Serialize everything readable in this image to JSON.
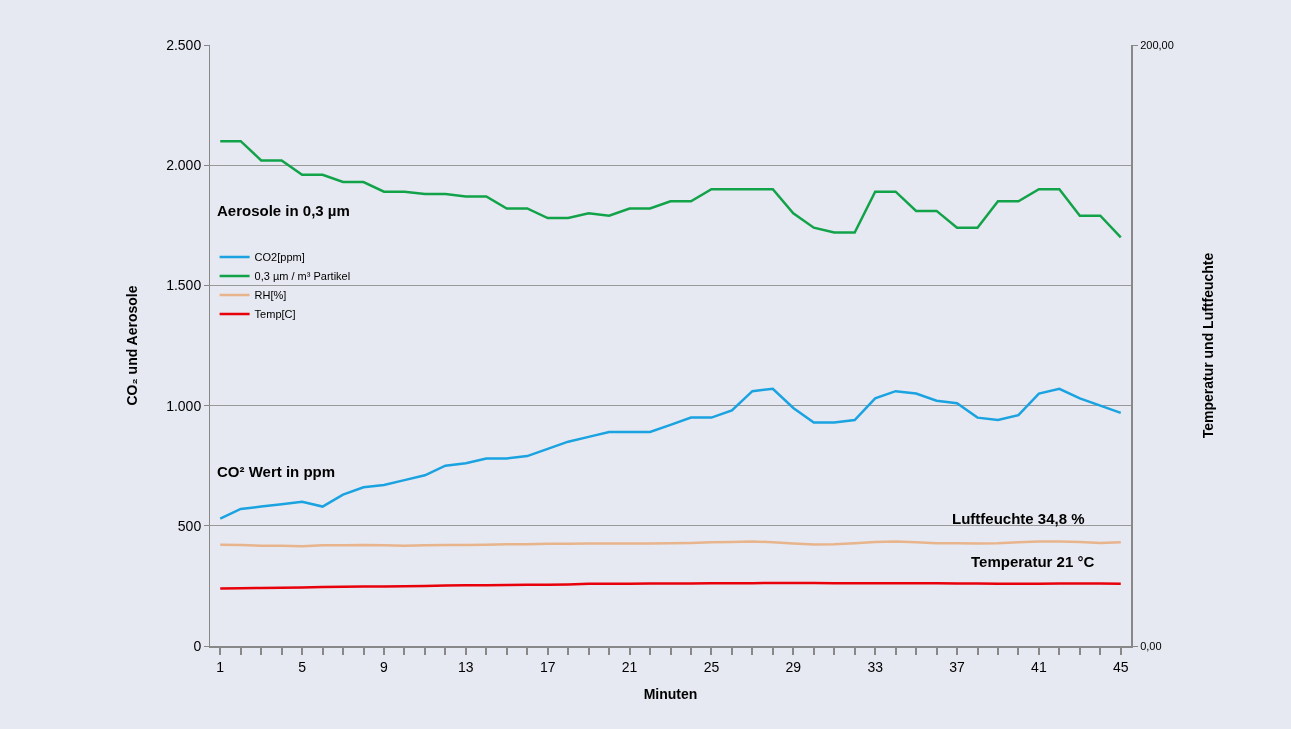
{
  "chart_data": {
    "type": "line",
    "xlabel": "Minuten",
    "ylabel": "CO₂ und Aerosole",
    "y2label": "Temperatur und Luftfeuchte",
    "x": [
      1,
      2,
      3,
      4,
      5,
      6,
      7,
      8,
      9,
      10,
      11,
      12,
      13,
      14,
      15,
      16,
      17,
      18,
      19,
      20,
      21,
      22,
      23,
      24,
      25,
      26,
      27,
      28,
      29,
      30,
      31,
      32,
      33,
      34,
      35,
      36,
      37,
      38,
      39,
      40,
      41,
      42,
      43,
      44,
      45
    ],
    "xlim": [
      0.5,
      45.5
    ],
    "xticks": [
      1,
      5,
      9,
      13,
      17,
      21,
      25,
      29,
      33,
      37,
      41,
      45
    ],
    "ylim": [
      0,
      2500
    ],
    "yticks": [
      {
        "value": 0,
        "label": "0"
      },
      {
        "value": 500,
        "label": "500"
      },
      {
        "value": 1000,
        "label": "1.000"
      },
      {
        "value": 1500,
        "label": "1.500"
      },
      {
        "value": 2000,
        "label": "2.000"
      },
      {
        "value": 2500,
        "label": "2.500"
      }
    ],
    "y2lim": [
      0,
      200
    ],
    "y2ticks": [
      {
        "value": 0,
        "label": "0,00"
      },
      {
        "value": 200,
        "label": "200,00"
      }
    ],
    "grid": "y",
    "legend": "left",
    "marker": "none",
    "line_style": "solid",
    "series": [
      {
        "name": "CO2[ppm]",
        "color": "#1aa3e0",
        "values": [
          530,
          570,
          580,
          590,
          600,
          580,
          630,
          660,
          670,
          690,
          710,
          750,
          760,
          780,
          780,
          790,
          820,
          850,
          870,
          890,
          890,
          890,
          920,
          950,
          950,
          980,
          1060,
          1070,
          990,
          930,
          930,
          940,
          1030,
          1060,
          1050,
          1020,
          1010,
          950,
          940,
          960,
          1050,
          1070,
          1030,
          1000,
          970
        ]
      },
      {
        "name": "0,3 µm / m³ Partikel",
        "color": "#12a34a",
        "values": [
          2100,
          2100,
          2020,
          2020,
          1960,
          1960,
          1930,
          1930,
          1890,
          1890,
          1880,
          1880,
          1870,
          1870,
          1820,
          1820,
          1780,
          1780,
          1800,
          1790,
          1820,
          1820,
          1850,
          1850,
          1900,
          1900,
          1900,
          1900,
          1800,
          1740,
          1720,
          1720,
          1890,
          1890,
          1810,
          1810,
          1740,
          1740,
          1850,
          1850,
          1900,
          1900,
          1790,
          1790,
          1700
        ]
      },
      {
        "name": "RH[%]",
        "color": "#e8b48c",
        "axis": "y2",
        "values": [
          33.7,
          33.6,
          33.4,
          33.4,
          33.2,
          33.5,
          33.5,
          33.6,
          33.5,
          33.4,
          33.5,
          33.6,
          33.6,
          33.7,
          33.9,
          33.9,
          34.0,
          34.0,
          34.1,
          34.1,
          34.1,
          34.1,
          34.2,
          34.3,
          34.5,
          34.6,
          34.8,
          34.5,
          34.1,
          33.8,
          33.9,
          34.2,
          34.6,
          34.8,
          34.5,
          34.2,
          34.2,
          34.1,
          34.2,
          34.5,
          34.8,
          34.8,
          34.6,
          34.3,
          34.5
        ]
      },
      {
        "name": "Temp[C]",
        "color": "#e8000b",
        "axis": "y2",
        "values": [
          19.1,
          19.2,
          19.3,
          19.4,
          19.5,
          19.6,
          19.7,
          19.8,
          19.8,
          19.9,
          20.0,
          20.1,
          20.2,
          20.2,
          20.3,
          20.4,
          20.4,
          20.5,
          20.7,
          20.7,
          20.7,
          20.8,
          20.8,
          20.8,
          20.9,
          20.9,
          20.9,
          21.0,
          21.0,
          21.0,
          20.9,
          20.9,
          20.9,
          20.9,
          20.9,
          20.9,
          20.8,
          20.8,
          20.7,
          20.7,
          20.7,
          20.8,
          20.8,
          20.8,
          20.7
        ]
      }
    ],
    "annotations": [
      "Aerosole in 0,3 µm",
      "CO² Wert in ppm",
      "Luftfeuchte 34,8 %",
      "Temperatur 21 °C"
    ]
  }
}
